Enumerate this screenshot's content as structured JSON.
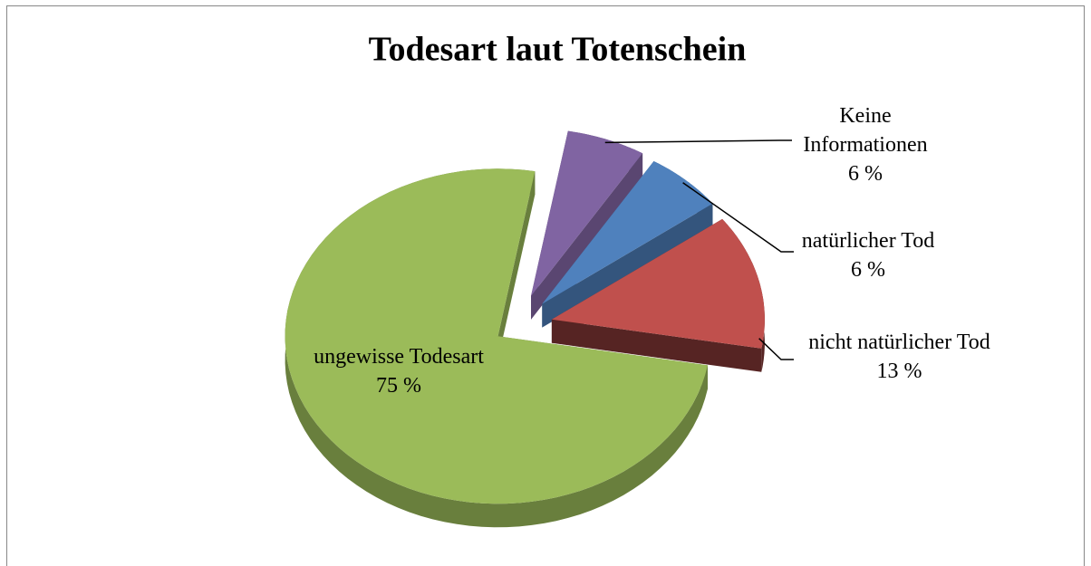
{
  "chart_data": {
    "type": "pie",
    "title": "Todesart laut Totenschein",
    "categories": [
      "Keine Informationen",
      "natürlicher Tod",
      "nicht natürlicher Tod",
      "ungewisse Todesart"
    ],
    "values": [
      6,
      6,
      13,
      75
    ],
    "value_labels": [
      "6 %",
      "6 %",
      "13 %",
      "75 %"
    ],
    "colors": [
      "#8064a2",
      "#4f81bd",
      "#c0504d",
      "#9bbb59"
    ]
  }
}
